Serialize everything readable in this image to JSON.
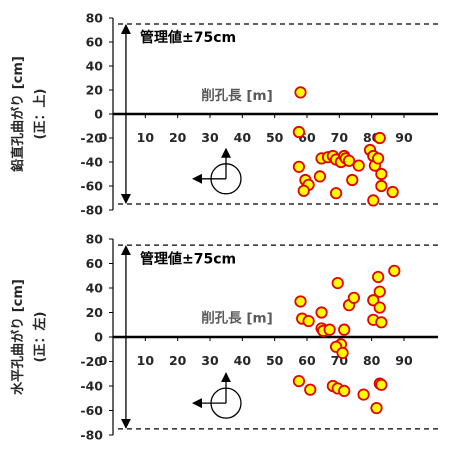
{
  "colors": {
    "marker_fill": "#FFFF00",
    "marker_stroke": "#E60000",
    "axis": "#000000",
    "tick_text": "#262626",
    "axis_label_text": "#595959"
  },
  "chart_data": [
    {
      "type": "scatter",
      "title": "",
      "xlabel": "削孔長 [m]",
      "ylabel": "鉛直孔曲がり [cm]",
      "ylabel_sub": "(正：上)",
      "management_label": "管理値±75cm",
      "management_limits": [
        -75,
        75
      ],
      "xlim": [
        0,
        90
      ],
      "ylim": [
        -80,
        80
      ],
      "xticks": [
        10,
        20,
        30,
        40,
        50,
        60,
        70,
        80,
        90
      ],
      "yticks": [
        -80,
        -60,
        -40,
        -20,
        0,
        20,
        40,
        60,
        80
      ],
      "legend": "none",
      "grid": false,
      "reference_mark_x": 4,
      "points": [
        {
          "x": 58,
          "y": 18
        },
        {
          "x": 57.5,
          "y": -15
        },
        {
          "x": 57.5,
          "y": -44
        },
        {
          "x": 59.5,
          "y": -55
        },
        {
          "x": 60.5,
          "y": -59
        },
        {
          "x": 59,
          "y": -64
        },
        {
          "x": 64,
          "y": -52
        },
        {
          "x": 64.5,
          "y": -37
        },
        {
          "x": 66.5,
          "y": -36
        },
        {
          "x": 68,
          "y": -35
        },
        {
          "x": 69,
          "y": -38
        },
        {
          "x": 69,
          "y": -66
        },
        {
          "x": 70.5,
          "y": -40
        },
        {
          "x": 71.5,
          "y": -35
        },
        {
          "x": 72,
          "y": -37
        },
        {
          "x": 73,
          "y": -39
        },
        {
          "x": 74,
          "y": -55
        },
        {
          "x": 76,
          "y": -43
        },
        {
          "x": 79.5,
          "y": -30
        },
        {
          "x": 80.5,
          "y": -35
        },
        {
          "x": 81,
          "y": -43
        },
        {
          "x": 82,
          "y": -37
        },
        {
          "x": 82.5,
          "y": -20
        },
        {
          "x": 83,
          "y": -50
        },
        {
          "x": 83,
          "y": -60
        },
        {
          "x": 80.5,
          "y": -72
        },
        {
          "x": 86.5,
          "y": -65
        }
      ]
    },
    {
      "type": "scatter",
      "title": "",
      "xlabel": "削孔長 [m]",
      "ylabel": "水平孔曲がり [cm]",
      "ylabel_sub": "(正：左)",
      "management_label": "管理値±75cm",
      "management_limits": [
        -75,
        75
      ],
      "xlim": [
        0,
        90
      ],
      "ylim": [
        -80,
        80
      ],
      "xticks": [
        10,
        20,
        30,
        40,
        50,
        60,
        70,
        80,
        90
      ],
      "yticks": [
        -80,
        -60,
        -40,
        -20,
        0,
        20,
        40,
        60,
        80
      ],
      "legend": "none",
      "grid": false,
      "reference_mark_x": 4,
      "points": [
        {
          "x": 58,
          "y": 29
        },
        {
          "x": 58.5,
          "y": 15
        },
        {
          "x": 60.5,
          "y": 13
        },
        {
          "x": 64.5,
          "y": 20
        },
        {
          "x": 64.5,
          "y": 7
        },
        {
          "x": 65,
          "y": 5
        },
        {
          "x": 67,
          "y": 6
        },
        {
          "x": 69.5,
          "y": 44
        },
        {
          "x": 70.5,
          "y": -6
        },
        {
          "x": 69,
          "y": -8
        },
        {
          "x": 71,
          "y": -13
        },
        {
          "x": 71.5,
          "y": 6
        },
        {
          "x": 73,
          "y": 26
        },
        {
          "x": 74.5,
          "y": 32
        },
        {
          "x": 57.5,
          "y": -36
        },
        {
          "x": 61,
          "y": -43
        },
        {
          "x": 68,
          "y": -40
        },
        {
          "x": 69.5,
          "y": -42
        },
        {
          "x": 71.5,
          "y": -44
        },
        {
          "x": 77.5,
          "y": -47
        },
        {
          "x": 80.5,
          "y": 14
        },
        {
          "x": 80.5,
          "y": 30
        },
        {
          "x": 82,
          "y": 49
        },
        {
          "x": 82.5,
          "y": 37
        },
        {
          "x": 82.5,
          "y": 24
        },
        {
          "x": 83,
          "y": 12
        },
        {
          "x": 87,
          "y": 54
        },
        {
          "x": 82.5,
          "y": -38
        },
        {
          "x": 83,
          "y": -39
        },
        {
          "x": 81.5,
          "y": -58
        }
      ]
    }
  ]
}
